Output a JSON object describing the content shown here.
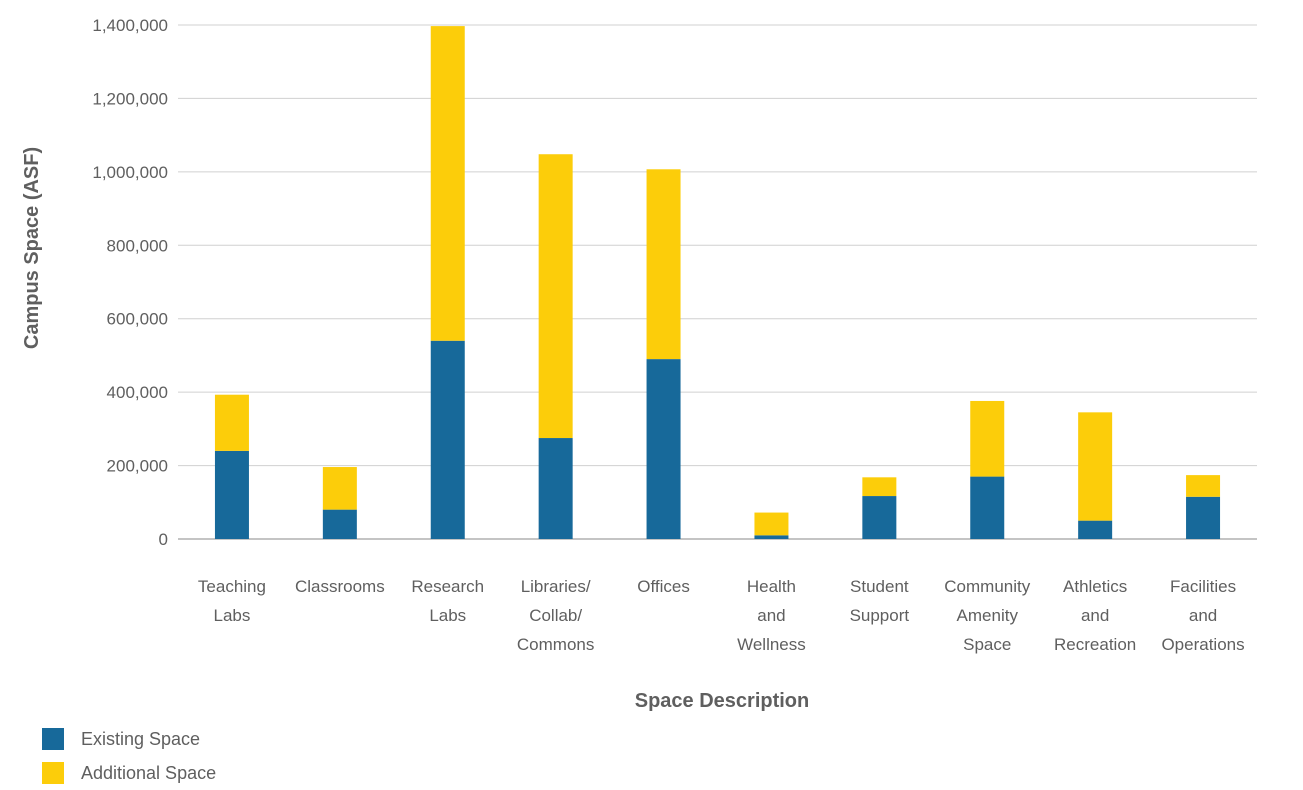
{
  "chart_data": {
    "type": "bar",
    "stacked": true,
    "categories": [
      [
        "Teaching",
        "Labs"
      ],
      [
        "Classrooms"
      ],
      [
        "Research",
        "Labs"
      ],
      [
        "Libraries/",
        "Collab/",
        "Commons"
      ],
      [
        "Offices"
      ],
      [
        "Health",
        "and",
        "Wellness"
      ],
      [
        "Student",
        "Support"
      ],
      [
        "Community",
        "Amenity",
        "Space"
      ],
      [
        "Athletics",
        "and",
        "Recreation"
      ],
      [
        "Facilities",
        "and",
        "Operations"
      ]
    ],
    "series": [
      {
        "name": "Existing Space",
        "color": "#17699a",
        "values": [
          240000,
          80000,
          540000,
          275000,
          490000,
          10000,
          117000,
          170000,
          50000,
          115000
        ]
      },
      {
        "name": "Additional Space",
        "color": "#fccd0a",
        "values": [
          153000,
          116000,
          857000,
          773000,
          517000,
          62000,
          51000,
          206000,
          295000,
          59000
        ]
      }
    ],
    "xlabel": "Space Description",
    "ylabel": "Campus Space (ASF)",
    "ylim": [
      0,
      1400000
    ],
    "yticks": [
      "0",
      "200,000",
      "400,000",
      "600,000",
      "800,000",
      "1,000,000",
      "1,200,000",
      "1,400,000"
    ],
    "grid": true,
    "legend_position": "bottom-left"
  }
}
